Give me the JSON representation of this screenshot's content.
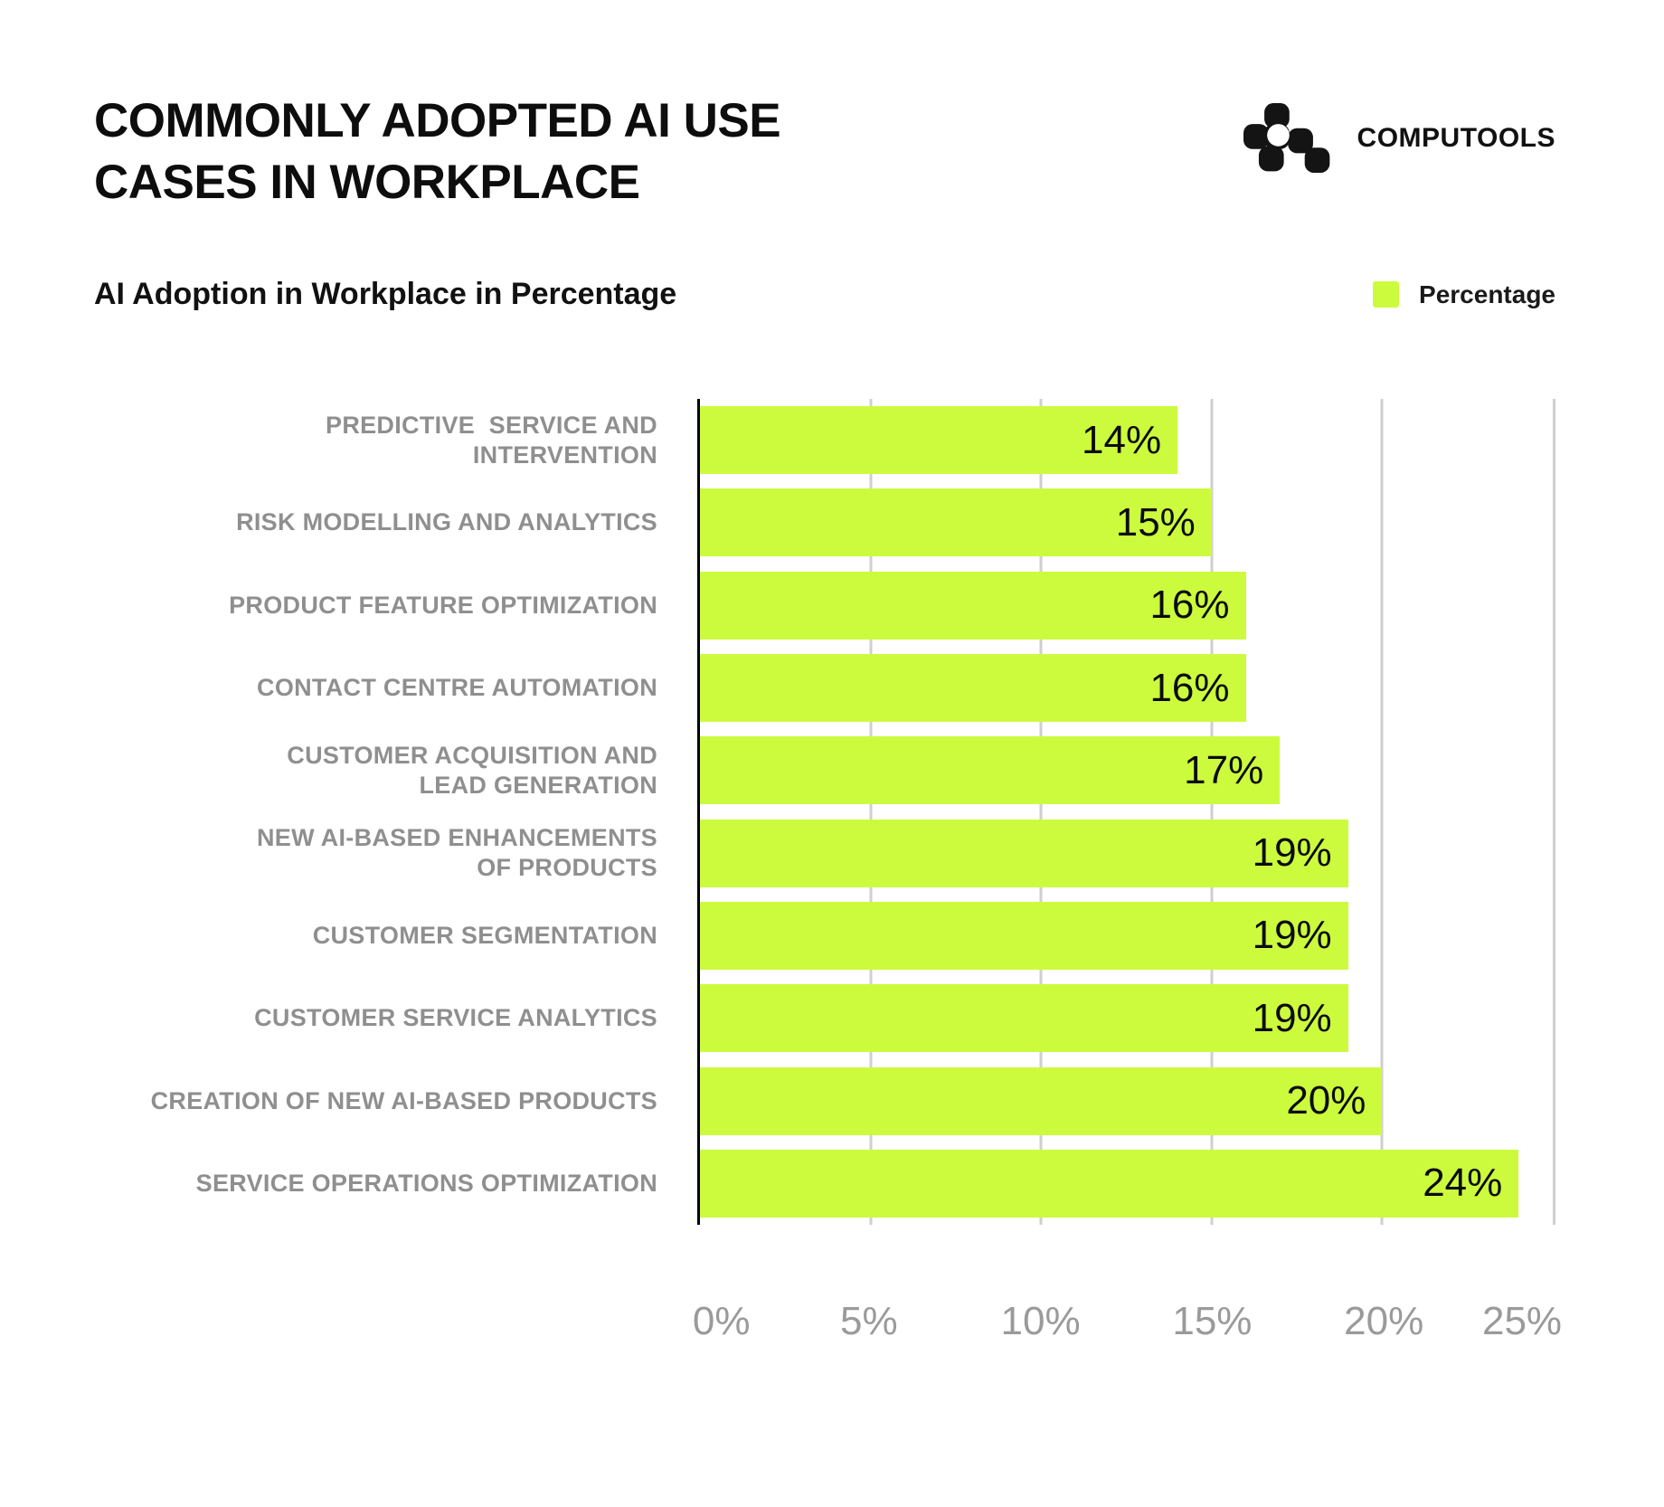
{
  "header": {
    "title": "COMMONLY ADOPTED AI USE\nCASES IN WORKPLACE",
    "brand": "COMPUTOOLS",
    "subtitle": "AI Adoption in Workplace in Percentage"
  },
  "legend": {
    "label": "Percentage",
    "color": "#ccfb3d"
  },
  "colors": {
    "bar": "#ccfb3d",
    "axis": "#000000",
    "gridline": "#cfcfcf",
    "category_label": "#8f8f8f",
    "tick_label": "#9a9a9a",
    "title": "#0d0d0d"
  },
  "chart_data": {
    "type": "bar",
    "orientation": "horizontal",
    "title": "AI Adoption in Workplace in Percentage",
    "series_name": "Percentage",
    "categories": [
      "PREDICTIVE  SERVICE AND\nINTERVENTION",
      "RISK MODELLING AND ANALYTICS",
      "PRODUCT FEATURE OPTIMIZATION",
      "CONTACT CENTRE AUTOMATION",
      "CUSTOMER ACQUISITION AND\nLEAD GENERATION",
      "NEW AI-BASED ENHANCEMENTS\nOF PRODUCTS",
      "CUSTOMER SEGMENTATION",
      "CUSTOMER SERVICE ANALYTICS",
      "CREATION OF NEW AI-BASED PRODUCTS",
      "SERVICE OPERATIONS OPTIMIZATION"
    ],
    "values": [
      14,
      15,
      16,
      16,
      17,
      19,
      19,
      19,
      20,
      24
    ],
    "value_labels": [
      "14%",
      "15%",
      "16%",
      "16%",
      "17%",
      "19%",
      "19%",
      "19%",
      "20%",
      "24%"
    ],
    "xlabel": "",
    "ylabel": "",
    "xlim": [
      0,
      25
    ],
    "x_ticks": [
      0,
      5,
      10,
      15,
      20,
      25
    ],
    "x_tick_labels": [
      "0%",
      "5%",
      "10%",
      "15%",
      "20%",
      "25%"
    ],
    "grid": "vertical",
    "bar_color": "#ccfb3d",
    "legend_position": "top-right"
  }
}
